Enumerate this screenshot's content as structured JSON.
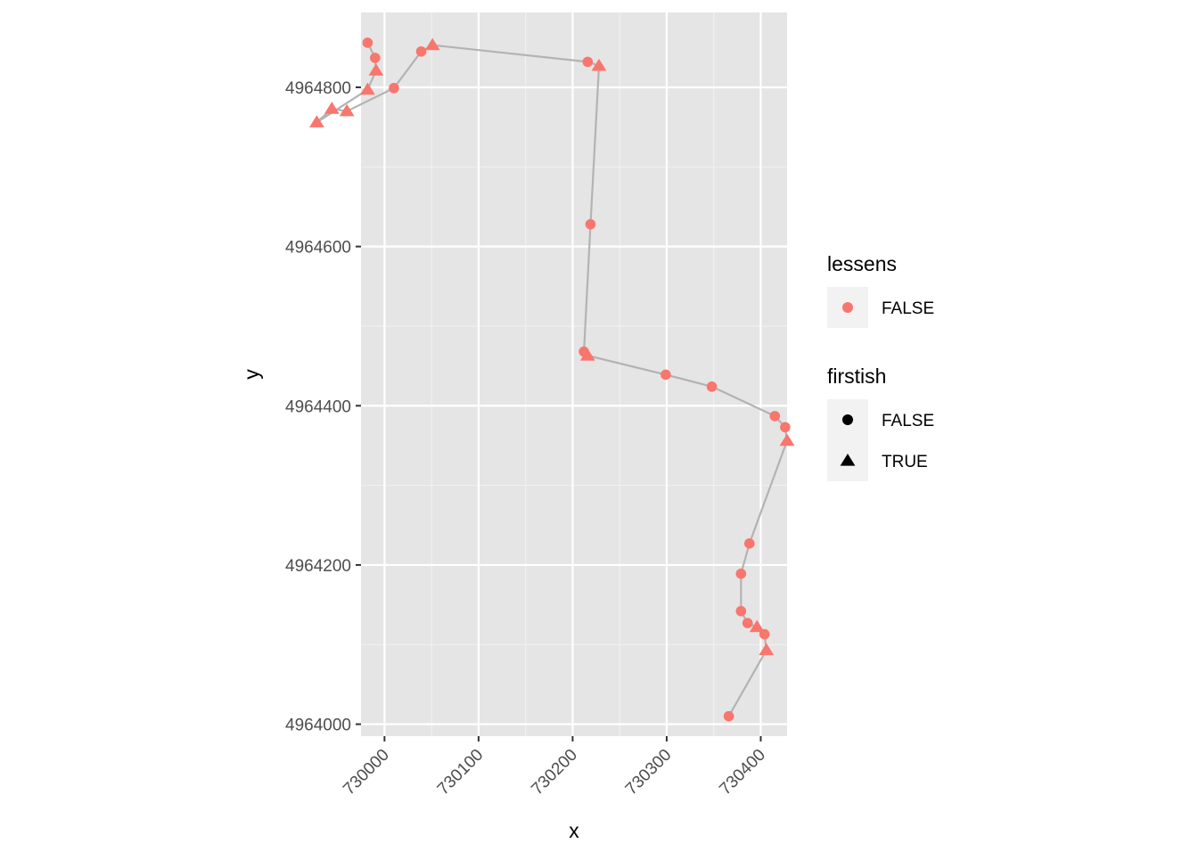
{
  "chart_data": {
    "type": "scatter",
    "xlabel": "x",
    "ylabel": "y",
    "xlim": [
      729975,
      730428
    ],
    "ylim": [
      4963985,
      4964894
    ],
    "x_ticks": [
      730000,
      730100,
      730200,
      730300,
      730400
    ],
    "y_ticks": [
      4964000,
      4964200,
      4964400,
      4964600,
      4964800
    ],
    "x_tick_labels": [
      "730000",
      "730100",
      "730200",
      "730300",
      "730400"
    ],
    "y_tick_labels": [
      "4964000",
      "4964200",
      "4964400",
      "4964600",
      "4964800"
    ],
    "grid": true,
    "panel_background": "#e5e5e5",
    "point_color": "#f8766d",
    "path_color": "#b3b3b3",
    "points": [
      {
        "x": 730366,
        "y": 4964010,
        "firstish": false
      },
      {
        "x": 730406,
        "y": 4964093,
        "firstish": true
      },
      {
        "x": 730404,
        "y": 4964113,
        "firstish": false
      },
      {
        "x": 730396,
        "y": 4964122,
        "firstish": true
      },
      {
        "x": 730386,
        "y": 4964127,
        "firstish": false
      },
      {
        "x": 730379,
        "y": 4964142,
        "firstish": false
      },
      {
        "x": 730379,
        "y": 4964189,
        "firstish": false
      },
      {
        "x": 730388,
        "y": 4964227,
        "firstish": false
      },
      {
        "x": 730428,
        "y": 4964356,
        "firstish": true
      },
      {
        "x": 730426,
        "y": 4964373,
        "firstish": false
      },
      {
        "x": 730415,
        "y": 4964387,
        "firstish": false
      },
      {
        "x": 730348,
        "y": 4964424,
        "firstish": false
      },
      {
        "x": 730299,
        "y": 4964439,
        "firstish": false
      },
      {
        "x": 730216,
        "y": 4964463,
        "firstish": true
      },
      {
        "x": 730212,
        "y": 4964468,
        "firstish": false
      },
      {
        "x": 730219,
        "y": 4964628,
        "firstish": false
      },
      {
        "x": 730228,
        "y": 4964827,
        "firstish": true
      },
      {
        "x": 730216,
        "y": 4964832,
        "firstish": false
      },
      {
        "x": 730051,
        "y": 4964853,
        "firstish": true
      },
      {
        "x": 730039,
        "y": 4964845,
        "firstish": false
      },
      {
        "x": 730010,
        "y": 4964799,
        "firstish": false
      },
      {
        "x": 729960,
        "y": 4964770,
        "firstish": true
      },
      {
        "x": 729944,
        "y": 4964773,
        "firstish": true
      },
      {
        "x": 729928,
        "y": 4964756,
        "firstish": true
      },
      {
        "x": 729982,
        "y": 4964797,
        "firstish": true
      },
      {
        "x": 729991,
        "y": 4964821,
        "firstish": true
      },
      {
        "x": 729990,
        "y": 4964837,
        "firstish": false
      },
      {
        "x": 729982,
        "y": 4964856,
        "firstish": false
      }
    ],
    "legends": [
      {
        "title": "lessens",
        "entries": [
          {
            "label": "FALSE",
            "shape": "circle",
            "color": "#f8766d"
          }
        ]
      },
      {
        "title": "firstish",
        "entries": [
          {
            "label": "FALSE",
            "shape": "circle",
            "color": "#000000"
          },
          {
            "label": "TRUE",
            "shape": "triangle",
            "color": "#000000"
          }
        ]
      }
    ],
    "legend_position": "right"
  }
}
